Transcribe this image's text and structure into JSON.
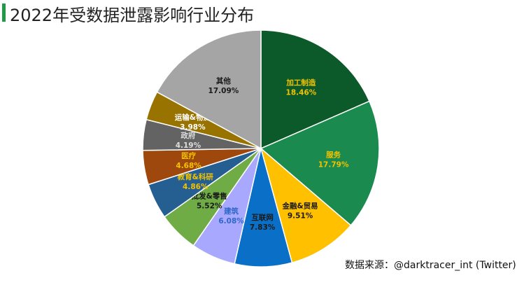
{
  "title": "2022年受数据泄露影响行业分布",
  "source": "数据来源：@darktracer_int (Twitter)",
  "chart_data": {
    "type": "pie",
    "title": "2022年受数据泄露影响行业分布",
    "slices": [
      {
        "label": "加工制造",
        "value": 18.46,
        "value_label": "18.46%",
        "color": "#0c5a2a",
        "label_color": "#f2c200"
      },
      {
        "label": "服务",
        "value": 17.79,
        "value_label": "17.79%",
        "color": "#1a8a4e",
        "label_color": "#f2c200"
      },
      {
        "label": "金融&贸易",
        "value": 9.51,
        "value_label": "9.51%",
        "color": "#ffc000",
        "label_color": "#1a1a1a"
      },
      {
        "label": "互联网",
        "value": 7.83,
        "value_label": "7.83%",
        "color": "#0a6fc6",
        "label_color": "#1a1a1a"
      },
      {
        "label": "建筑",
        "value": 6.08,
        "value_label": "6.08%",
        "color": "#a8a8ff",
        "label_color": "#2f68c8"
      },
      {
        "label": "批发&零售",
        "value": 5.52,
        "value_label": "5.52%",
        "color": "#6fac46",
        "label_color": "#1a1a1a"
      },
      {
        "label": "教育&科研",
        "value": 4.86,
        "value_label": "4.86%",
        "color": "#255e91",
        "label_color": "#f2c200"
      },
      {
        "label": "医疗",
        "value": 4.68,
        "value_label": "4.68%",
        "color": "#9e480e",
        "label_color": "#f2c200"
      },
      {
        "label": "政府",
        "value": 4.19,
        "value_label": "4.19%",
        "color": "#636363",
        "label_color": "#dddddd"
      },
      {
        "label": "运输&物流",
        "value": 3.98,
        "value_label": "3.98%",
        "color": "#997300",
        "label_color": "#ffffff"
      },
      {
        "label": "其他",
        "value": 17.09,
        "value_label": "17.09%",
        "color": "#a5a5a5",
        "label_color": "#1a1a1a"
      }
    ]
  }
}
